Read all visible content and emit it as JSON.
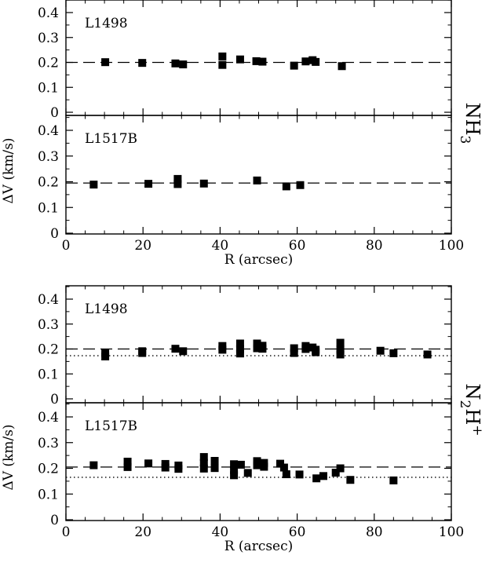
{
  "molecules": {
    "nh3": [
      "NH",
      "3"
    ],
    "n2h": [
      "N",
      "2",
      "H",
      "+"
    ]
  },
  "axes": {
    "xlabel": "R (arcsec)",
    "ylabel": "ΔV (km/s)",
    "xlim": [
      0,
      100
    ],
    "ylim": [
      0,
      0.45
    ],
    "xticks": [
      "0",
      "20",
      "40",
      "60",
      "80",
      "100"
    ],
    "yticks": [
      "0",
      "0.1",
      "0.2",
      "0.3",
      "0.4"
    ]
  },
  "chart_data": [
    {
      "type": "scatter",
      "molecule": "NH3",
      "label": "L1498",
      "dashed_line": 0.2,
      "dotted_line": null,
      "x": [
        10.2,
        19.8,
        28.4,
        30.4,
        40.6,
        40.6,
        45.2,
        49.4,
        51.0,
        59.2,
        62.2,
        64.0,
        64.8,
        71.6
      ],
      "y": [
        0.201,
        0.198,
        0.196,
        0.192,
        0.224,
        0.19,
        0.212,
        0.205,
        0.203,
        0.187,
        0.204,
        0.209,
        0.202,
        0.185
      ]
    },
    {
      "type": "scatter",
      "molecule": "NH3",
      "label": "L1517B",
      "dashed_line": 0.195,
      "dotted_line": null,
      "x": [
        7.2,
        21.4,
        29.0,
        29.0,
        35.8,
        49.6,
        57.2,
        60.8
      ],
      "y": [
        0.189,
        0.192,
        0.211,
        0.191,
        0.193,
        0.205,
        0.182,
        0.187
      ]
    },
    {
      "type": "scatter",
      "molecule": "N2H+",
      "label": "L1498",
      "dashed_line": 0.2,
      "dotted_line": 0.173,
      "x": [
        10.2,
        10.2,
        19.8,
        19.8,
        28.4,
        30.4,
        40.6,
        40.6,
        45.2,
        45.2,
        45.2,
        49.6,
        49.6,
        51.0,
        51.0,
        59.2,
        59.2,
        62.2,
        62.2,
        64.0,
        64.8,
        64.8,
        71.2,
        71.2,
        71.2,
        81.6,
        85.0,
        93.8
      ],
      "y": [
        0.184,
        0.17,
        0.191,
        0.184,
        0.201,
        0.191,
        0.212,
        0.197,
        0.222,
        0.2,
        0.182,
        0.222,
        0.203,
        0.213,
        0.201,
        0.203,
        0.184,
        0.212,
        0.2,
        0.206,
        0.197,
        0.187,
        0.225,
        0.197,
        0.178,
        0.193,
        0.183,
        0.178
      ]
    },
    {
      "type": "scatter",
      "molecule": "N2H+",
      "label": "L1517B",
      "dashed_line": 0.205,
      "dotted_line": 0.165,
      "x": [
        7.2,
        16.0,
        16.0,
        21.4,
        25.8,
        25.8,
        29.2,
        29.2,
        35.8,
        35.8,
        35.8,
        38.6,
        38.6,
        43.6,
        43.6,
        43.6,
        45.4,
        47.2,
        49.6,
        49.6,
        51.4,
        51.4,
        55.6,
        56.6,
        57.2,
        60.6,
        65.0,
        66.8,
        70.0,
        71.2,
        73.8,
        85.0
      ],
      "y": [
        0.212,
        0.226,
        0.205,
        0.219,
        0.217,
        0.203,
        0.211,
        0.198,
        0.244,
        0.221,
        0.199,
        0.229,
        0.201,
        0.216,
        0.193,
        0.173,
        0.214,
        0.182,
        0.228,
        0.212,
        0.221,
        0.206,
        0.218,
        0.203,
        0.177,
        0.176,
        0.161,
        0.17,
        0.183,
        0.2,
        0.155,
        0.153
      ]
    }
  ]
}
